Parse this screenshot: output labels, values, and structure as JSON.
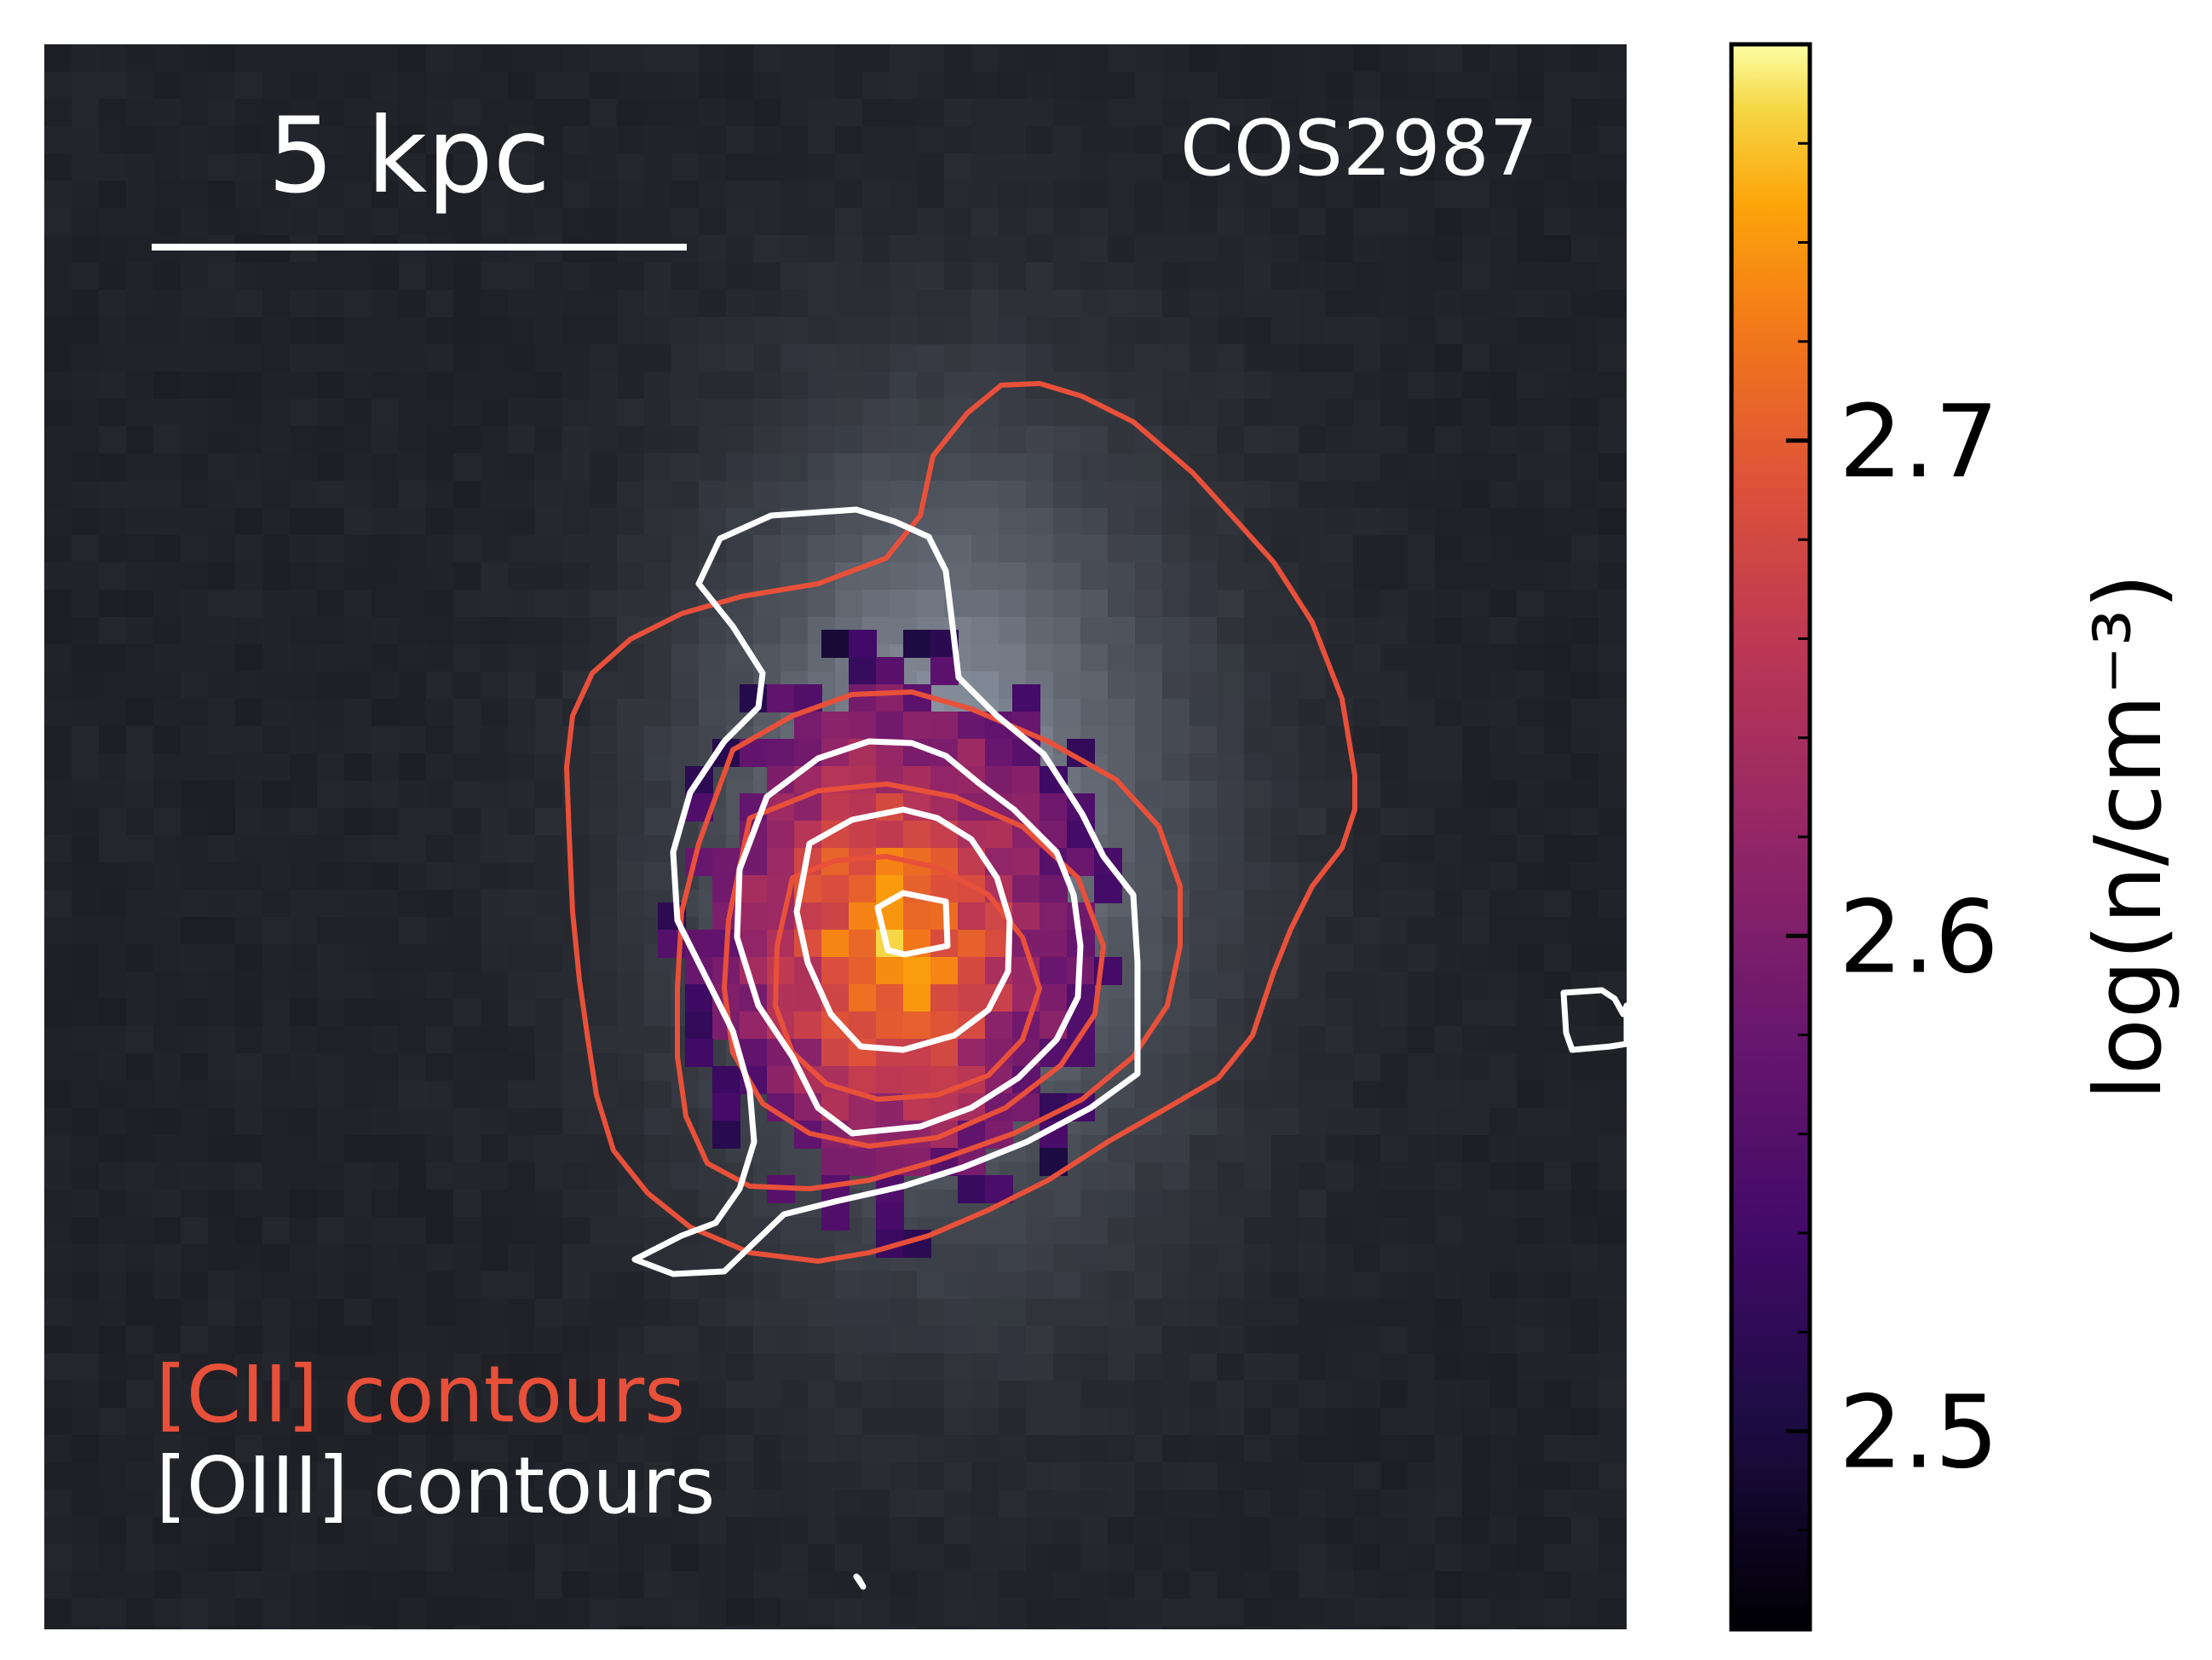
{
  "figure": {
    "object_label": "COS2987",
    "scalebar_label": "5 kpc",
    "legend": [
      {
        "text": "[CII] contours",
        "color": "#e8503a"
      },
      {
        "text": "[OIII] contours",
        "color": "#ffffff"
      }
    ]
  },
  "chart_data": {
    "type": "heatmap",
    "title": "",
    "colormap": "inferno",
    "colorbar": {
      "label": "log(n/cm⁻³)",
      "range": [
        2.46,
        2.78
      ],
      "major_ticks": [
        2.5,
        2.6,
        2.7
      ],
      "tick_labels": [
        "2.5",
        "2.6",
        "2.7"
      ],
      "minor_step": 0.02
    },
    "background": "greyscale image",
    "contour_series": [
      {
        "name": "[CII] contours",
        "color": "#e8503a",
        "levels": 4
      },
      {
        "name": "[OIII] contours",
        "color": "#ffffff",
        "levels": 4
      }
    ],
    "scalebar": {
      "length": "5 kpc"
    },
    "grid": false
  },
  "colors": {
    "cii": "#e8503a",
    "oiii": "#ffffff",
    "frame": "#000000"
  }
}
